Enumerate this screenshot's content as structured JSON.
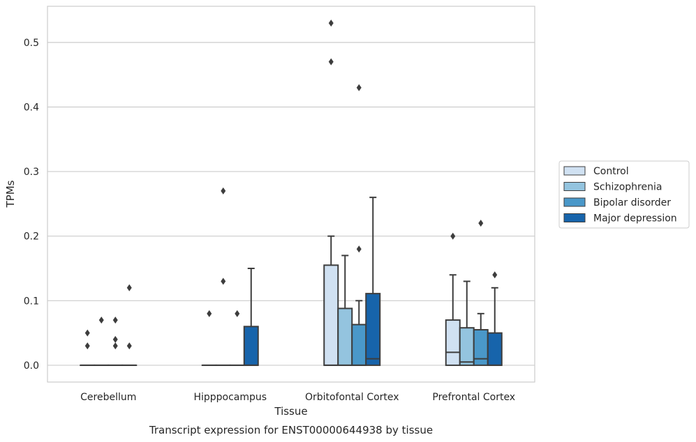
{
  "chart_data": {
    "type": "boxplot",
    "xlabel": "Tissue",
    "ylabel": "TPMs",
    "caption": "Transcript expression for ENST00000644938 by tissue",
    "ylim": [
      -0.026,
      0.556
    ],
    "yticks": [
      0.0,
      0.1,
      0.2,
      0.3,
      0.4,
      0.5
    ],
    "ytick_labels": [
      "0.0",
      "0.1",
      "0.2",
      "0.3",
      "0.4",
      "0.5"
    ],
    "grid": "horizontal",
    "legend_position": "right",
    "categories": [
      "Cerebellum",
      "Hipppocampus",
      "Orbitofontal Cortex",
      "Prefrontal Cortex"
    ],
    "series": [
      {
        "name": "Control",
        "color": "#d0e1f2",
        "boxes": [
          {
            "q1": 0,
            "median": 0,
            "q3": 0,
            "whisker_low": 0,
            "whisker_high": 0,
            "outliers": [
              0.05,
              0.03
            ]
          },
          {
            "q1": 0,
            "median": 0,
            "q3": 0,
            "whisker_low": 0,
            "whisker_high": 0,
            "outliers": [
              0.08
            ]
          },
          {
            "q1": 0,
            "median": 0,
            "q3": 0.155,
            "whisker_low": 0,
            "whisker_high": 0.2,
            "outliers": [
              0.53,
              0.47
            ]
          },
          {
            "q1": 0,
            "median": 0.02,
            "q3": 0.07,
            "whisker_low": 0,
            "whisker_high": 0.14,
            "outliers": [
              0.2
            ]
          }
        ]
      },
      {
        "name": "Schizophrenia",
        "color": "#94c4df",
        "boxes": [
          {
            "q1": 0,
            "median": 0,
            "q3": 0,
            "whisker_low": 0,
            "whisker_high": 0,
            "outliers": [
              0.07
            ]
          },
          {
            "q1": 0,
            "median": 0,
            "q3": 0,
            "whisker_low": 0,
            "whisker_high": 0,
            "outliers": [
              0.27,
              0.13
            ]
          },
          {
            "q1": 0,
            "median": 0,
            "q3": 0.088,
            "whisker_low": 0,
            "whisker_high": 0.17,
            "outliers": []
          },
          {
            "q1": 0,
            "median": 0.005,
            "q3": 0.058,
            "whisker_low": 0,
            "whisker_high": 0.13,
            "outliers": []
          }
        ]
      },
      {
        "name": "Bipolar disorder",
        "color": "#4a98c9",
        "boxes": [
          {
            "q1": 0,
            "median": 0,
            "q3": 0,
            "whisker_low": 0,
            "whisker_high": 0,
            "outliers": [
              0.07,
              0.04,
              0.03
            ]
          },
          {
            "q1": 0,
            "median": 0,
            "q3": 0,
            "whisker_low": 0,
            "whisker_high": 0,
            "outliers": [
              0.08
            ]
          },
          {
            "q1": 0,
            "median": 0,
            "q3": 0.063,
            "whisker_low": 0,
            "whisker_high": 0.1,
            "outliers": [
              0.43,
              0.18
            ]
          },
          {
            "q1": 0,
            "median": 0.01,
            "q3": 0.055,
            "whisker_low": 0,
            "whisker_high": 0.08,
            "outliers": [
              0.22
            ]
          }
        ]
      },
      {
        "name": "Major depression",
        "color": "#1764ab",
        "boxes": [
          {
            "q1": 0,
            "median": 0,
            "q3": 0,
            "whisker_low": 0,
            "whisker_high": 0,
            "outliers": [
              0.12,
              0.03
            ]
          },
          {
            "q1": 0,
            "median": 0,
            "q3": 0.06,
            "whisker_low": 0,
            "whisker_high": 0.15,
            "outliers": []
          },
          {
            "q1": 0,
            "median": 0.01,
            "q3": 0.111,
            "whisker_low": 0,
            "whisker_high": 0.26,
            "outliers": []
          },
          {
            "q1": 0,
            "median": 0,
            "q3": 0.05,
            "whisker_low": 0,
            "whisker_high": 0.12,
            "outliers": [
              0.14
            ]
          }
        ]
      }
    ]
  }
}
